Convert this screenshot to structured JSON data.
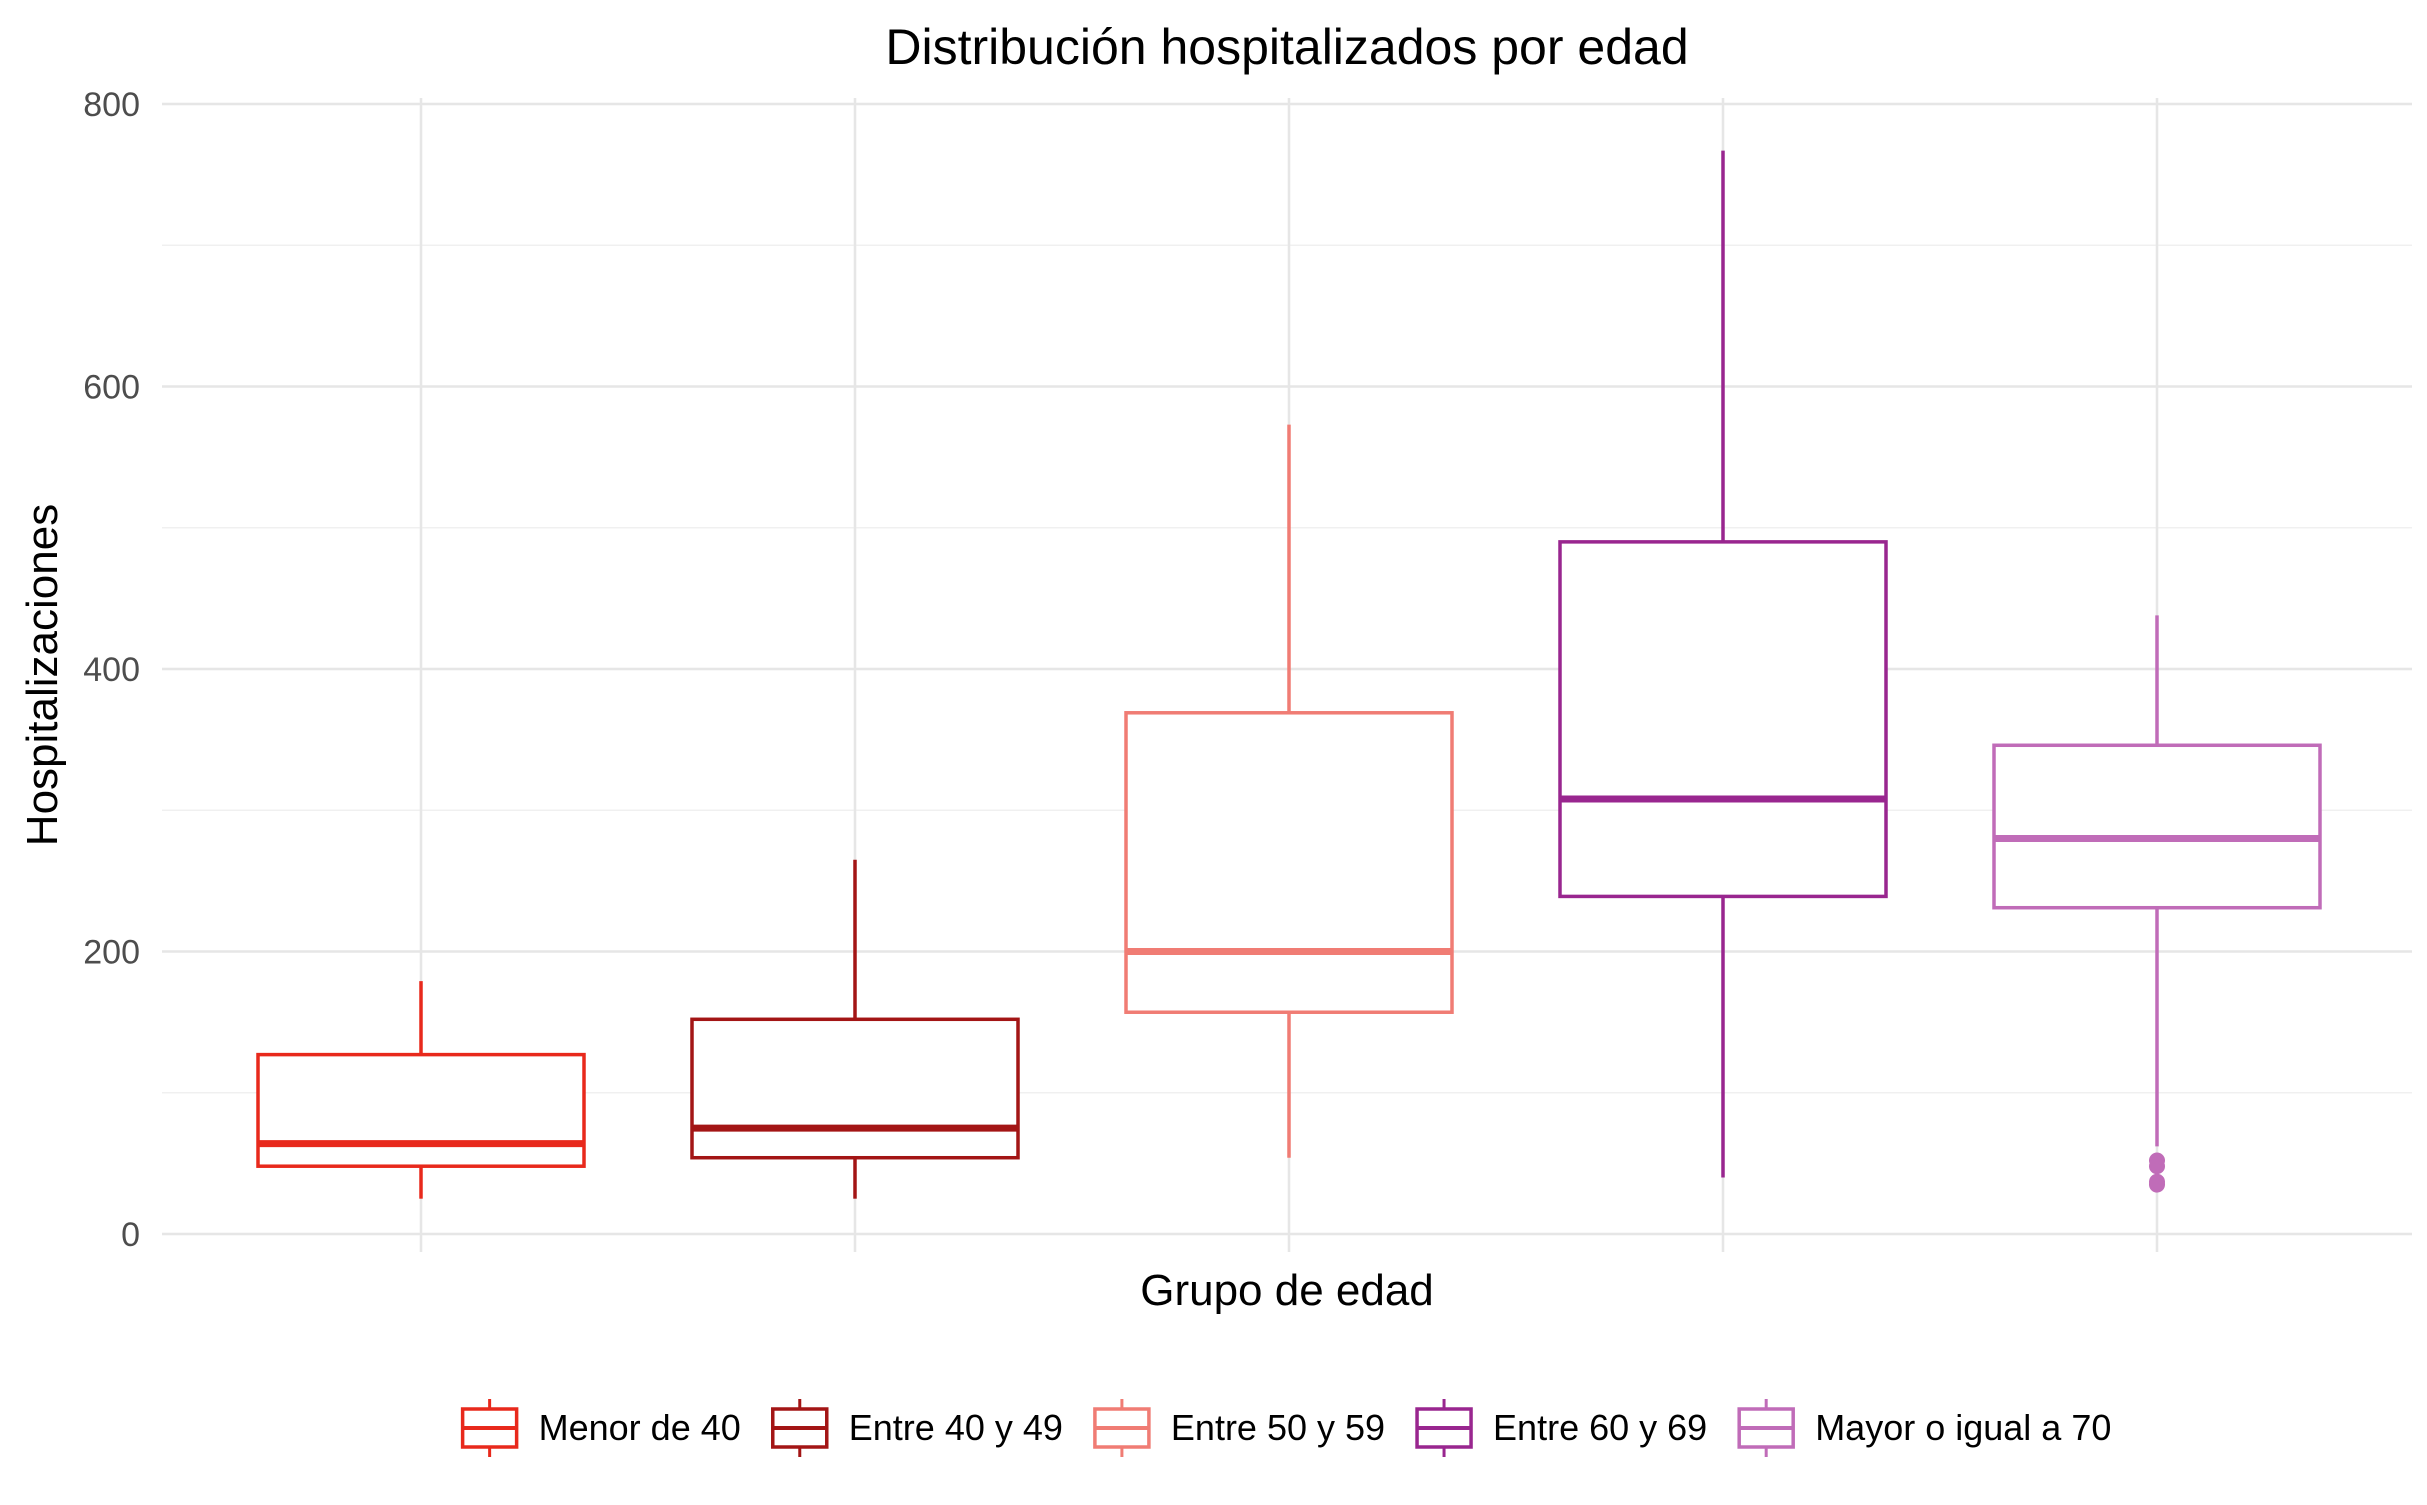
{
  "chart_data": {
    "type": "boxplot",
    "title": "Distribución hospitalizados por edad",
    "xlabel": "Grupo de edad",
    "ylabel": "Hospitalizaciones",
    "ylim": [
      0,
      800
    ],
    "yticks": [
      0,
      200,
      400,
      600,
      800
    ],
    "grid": true,
    "legend_position": "bottom",
    "series": [
      {
        "name": "Menor de 40",
        "color": "#e8291c",
        "whisker_low": 25,
        "q1": 48,
        "median": 64,
        "q3": 127,
        "whisker_high": 179,
        "outliers": []
      },
      {
        "name": "Entre 40 y 49",
        "color": "#a31515",
        "whisker_low": 25,
        "q1": 54,
        "median": 75,
        "q3": 152,
        "whisker_high": 265,
        "outliers": []
      },
      {
        "name": "Entre 50 y 59",
        "color": "#f07c74",
        "whisker_low": 54,
        "q1": 157,
        "median": 200,
        "q3": 369,
        "whisker_high": 573,
        "outliers": []
      },
      {
        "name": "Entre 60 y 69",
        "color": "#99268f",
        "whisker_low": 40,
        "q1": 239,
        "median": 308,
        "q3": 490,
        "whisker_high": 767,
        "outliers": []
      },
      {
        "name": "Mayor o igual a 70",
        "color": "#c06cb8",
        "whisker_low": 62,
        "q1": 231,
        "median": 280,
        "q3": 346,
        "whisker_high": 438,
        "outliers": [
          52,
          48,
          37,
          35
        ]
      }
    ]
  }
}
